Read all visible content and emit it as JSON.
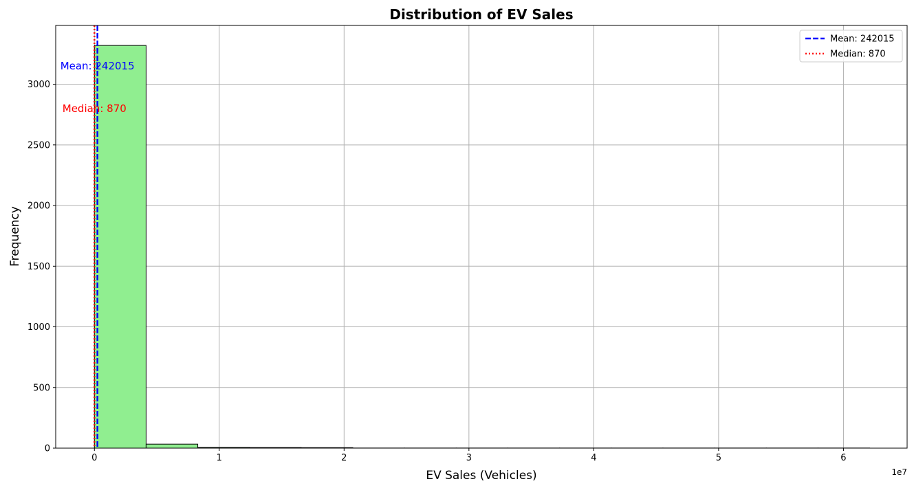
{
  "chart_data": {
    "type": "bar",
    "title": "Distribution of EV Sales",
    "xlabel": "EV Sales (Vehicles)",
    "ylabel": "Frequency",
    "x_offset_label": "1e7",
    "xlim": [
      -3100000,
      65100000
    ],
    "ylim": [
      0,
      3485
    ],
    "x_ticks": [
      0,
      10000000,
      20000000,
      30000000,
      40000000,
      50000000,
      60000000
    ],
    "x_tick_labels": [
      "0",
      "1",
      "2",
      "3",
      "4",
      "5",
      "6"
    ],
    "y_ticks": [
      0,
      500,
      1000,
      1500,
      2000,
      2500,
      3000
    ],
    "y_tick_labels": [
      "0",
      "500",
      "1000",
      "1500",
      "2000",
      "2500",
      "3000"
    ],
    "grid": true,
    "bar_color": "#90ee90",
    "bar_edge_color": "#000000",
    "bins": [
      {
        "start": 0,
        "end": 4140000,
        "count": 3320
      },
      {
        "start": 4140000,
        "end": 8280000,
        "count": 33
      },
      {
        "start": 8280000,
        "end": 12420000,
        "count": 6
      },
      {
        "start": 12420000,
        "end": 16560000,
        "count": 5
      },
      {
        "start": 16560000,
        "end": 20700000,
        "count": 4
      },
      {
        "start": 20700000,
        "end": 24840000,
        "count": 1
      },
      {
        "start": 24840000,
        "end": 28980000,
        "count": 1
      },
      {
        "start": 28980000,
        "end": 33120000,
        "count": 1
      },
      {
        "start": 33120000,
        "end": 37260000,
        "count": 1
      },
      {
        "start": 37260000,
        "end": 41400000,
        "count": 1
      },
      {
        "start": 41400000,
        "end": 45540000,
        "count": 1
      },
      {
        "start": 45540000,
        "end": 49680000,
        "count": 1
      },
      {
        "start": 49680000,
        "end": 53820000,
        "count": 1
      },
      {
        "start": 53820000,
        "end": 57960000,
        "count": 1
      },
      {
        "start": 57960000,
        "end": 62100000,
        "count": 1
      }
    ],
    "reference_lines": [
      {
        "name": "Mean: 242015",
        "value": 242015,
        "color": "#0000ff",
        "style": "dashed",
        "annotation": "Mean: 242015",
        "annotation_y": 3150
      },
      {
        "name": "Median: 870",
        "value": 870,
        "color": "#ff0000",
        "style": "dotted",
        "annotation": "Median: 870",
        "annotation_y": 2800
      }
    ],
    "legend_position": "top-right"
  }
}
